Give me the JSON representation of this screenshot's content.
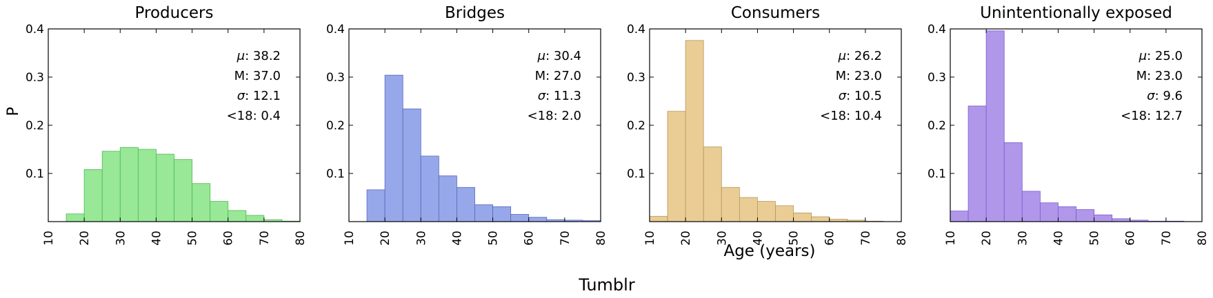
{
  "figure": {
    "suptitle": "Tumblr",
    "xlabel": "Age (years)",
    "ylabel": "P"
  },
  "chart_data": [
    {
      "type": "bar",
      "title": "Producers",
      "color": "#98e898",
      "edge": "#4fb84f",
      "xlim": [
        10,
        80
      ],
      "ylim": [
        0,
        0.4
      ],
      "xticks": [
        10,
        20,
        30,
        40,
        50,
        60,
        70,
        80
      ],
      "yticks": [
        0.1,
        0.2,
        0.3,
        0.4
      ],
      "bin_edges": [
        15,
        20,
        25,
        30,
        35,
        40,
        45,
        50,
        55,
        60,
        65,
        70,
        75,
        80
      ],
      "values": [
        0.016,
        0.108,
        0.146,
        0.154,
        0.15,
        0.14,
        0.129,
        0.079,
        0.042,
        0.023,
        0.013,
        0.004,
        0.001
      ],
      "stats": [
        {
          "symbol": "μ",
          "italic": true,
          "value": "38.2"
        },
        {
          "symbol": "M",
          "italic": false,
          "value": "37.0"
        },
        {
          "symbol": "σ",
          "italic": true,
          "value": "12.1"
        },
        {
          "symbol": "<18",
          "italic": false,
          "value": "0.4"
        }
      ]
    },
    {
      "type": "bar",
      "title": "Bridges",
      "color": "#97a8ea",
      "edge": "#5566bb",
      "xlim": [
        10,
        80
      ],
      "ylim": [
        0,
        0.4
      ],
      "xticks": [
        10,
        20,
        30,
        40,
        50,
        60,
        70,
        80
      ],
      "yticks": [
        0.1,
        0.2,
        0.3,
        0.4
      ],
      "bin_edges": [
        15,
        20,
        25,
        30,
        35,
        40,
        45,
        50,
        55,
        60,
        65,
        70,
        75,
        80
      ],
      "values": [
        0.066,
        0.304,
        0.234,
        0.136,
        0.095,
        0.071,
        0.035,
        0.031,
        0.015,
        0.009,
        0.004,
        0.003,
        0.002
      ],
      "stats": [
        {
          "symbol": "μ",
          "italic": true,
          "value": "30.4"
        },
        {
          "symbol": "M",
          "italic": false,
          "value": "27.0"
        },
        {
          "symbol": "σ",
          "italic": true,
          "value": "11.3"
        },
        {
          "symbol": "<18",
          "italic": false,
          "value": "2.0"
        }
      ]
    },
    {
      "type": "bar",
      "title": "Consumers",
      "color": "#e9cd95",
      "edge": "#b9955a",
      "xlim": [
        10,
        80
      ],
      "ylim": [
        0,
        0.4
      ],
      "xticks": [
        10,
        20,
        30,
        40,
        50,
        60,
        70,
        80
      ],
      "yticks": [
        0.1,
        0.2,
        0.3,
        0.4
      ],
      "bin_edges": [
        10,
        15,
        20,
        25,
        30,
        35,
        40,
        45,
        50,
        55,
        60,
        65,
        70,
        75
      ],
      "values": [
        0.011,
        0.229,
        0.376,
        0.155,
        0.071,
        0.05,
        0.042,
        0.033,
        0.018,
        0.01,
        0.005,
        0.003,
        0.001
      ],
      "stats": [
        {
          "symbol": "μ",
          "italic": true,
          "value": "26.2"
        },
        {
          "symbol": "M",
          "italic": false,
          "value": "23.0"
        },
        {
          "symbol": "σ",
          "italic": true,
          "value": "10.5"
        },
        {
          "symbol": "<18",
          "italic": false,
          "value": "10.4"
        }
      ]
    },
    {
      "type": "bar",
      "title": "Unintentionally exposed",
      "color": "#b197ea",
      "edge": "#7a5acc",
      "xlim": [
        10,
        80
      ],
      "ylim": [
        0,
        0.4
      ],
      "xticks": [
        10,
        20,
        30,
        40,
        50,
        60,
        70,
        80
      ],
      "yticks": [
        0.1,
        0.2,
        0.3,
        0.4
      ],
      "bin_edges": [
        10,
        15,
        20,
        25,
        30,
        35,
        40,
        45,
        50,
        55,
        60,
        65,
        70,
        75
      ],
      "values": [
        0.022,
        0.24,
        0.396,
        0.164,
        0.063,
        0.039,
        0.031,
        0.025,
        0.014,
        0.006,
        0.003,
        0.001,
        0.001
      ],
      "stats": [
        {
          "symbol": "μ",
          "italic": true,
          "value": "25.0"
        },
        {
          "symbol": "M",
          "italic": false,
          "value": "23.0"
        },
        {
          "symbol": "σ",
          "italic": true,
          "value": "9.6"
        },
        {
          "symbol": "<18",
          "italic": false,
          "value": "12.7"
        }
      ]
    }
  ]
}
